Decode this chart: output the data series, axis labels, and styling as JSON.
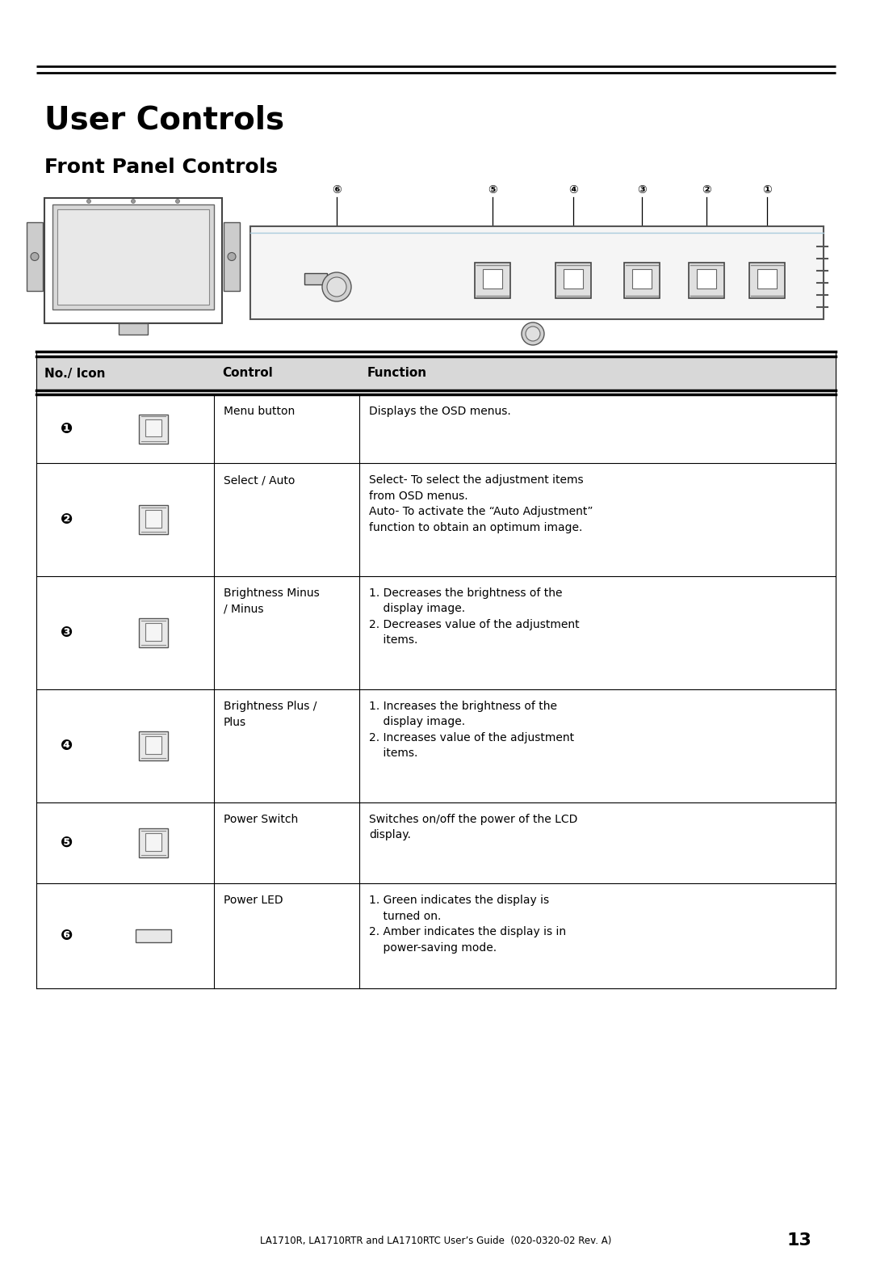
{
  "title": "User Controls",
  "subtitle": "Front Panel Controls",
  "bg_color": "#ffffff",
  "text_color": "#000000",
  "title_fontsize": 28,
  "subtitle_fontsize": 18,
  "table_header": [
    "No./ Icon",
    "Control",
    "Function"
  ],
  "footer_text": "LA1710R, LA1710RTR and LA1710RTC User’s Guide  (020-0320-02 Rev. A)",
  "page_number": "13",
  "rows": [
    {
      "num": "❶",
      "control": "Menu button",
      "function": "Displays the OSD menus.",
      "icon_type": "square_button"
    },
    {
      "num": "❷",
      "control": "Select / Auto",
      "function": "Select- To select the adjustment items\nfrom OSD menus.\nAuto- To activate the “Auto Adjustment”\nfunction to obtain an optimum image.",
      "icon_type": "square_button"
    },
    {
      "num": "❸",
      "control": "Brightness Minus\n/ Minus",
      "function": "1. Decreases the brightness of the\n    display image.\n2. Decreases value of the adjustment\n    items.",
      "icon_type": "square_button"
    },
    {
      "num": "❹",
      "control": "Brightness Plus /\nPlus",
      "function": "1. Increases the brightness of the\n    display image.\n2. Increases value of the adjustment\n    items.",
      "icon_type": "square_button"
    },
    {
      "num": "❺",
      "control": "Power Switch",
      "function": "Switches on/off the power of the LCD\ndisplay.",
      "icon_type": "square_button"
    },
    {
      "num": "❻",
      "control": "Power LED",
      "function": "1. Green indicates the display is\n    turned on.\n2. Amber indicates the display is in\n    power-saving mode.",
      "icon_type": "led"
    }
  ]
}
